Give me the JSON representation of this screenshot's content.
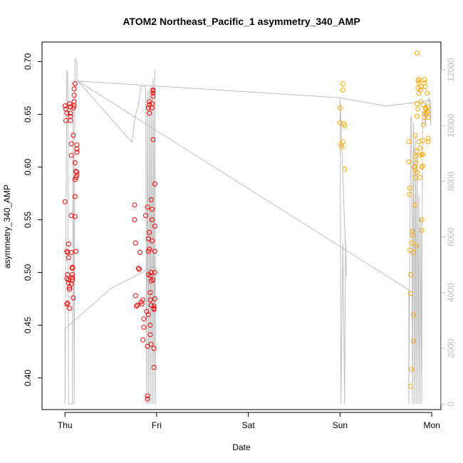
{
  "chart_data": {
    "type": "scatter",
    "title": "ATOM2 Northeast_Pacific_1 asymmetry_340_AMP",
    "xlabel": "Date",
    "ylabel": "asymmetry_340_AMP",
    "x_ticks": [
      "Thu",
      "Fri",
      "Sat",
      "Sun",
      "Mon"
    ],
    "xlim": [
      -0.25,
      4.1
    ],
    "ylim": [
      0.37,
      0.7185
    ],
    "y_ticks": [
      0.4,
      0.45,
      0.5,
      0.55,
      0.6,
      0.65,
      0.7
    ],
    "y_tick_labels": [
      "0.40",
      "0.45",
      "0.50",
      "0.55",
      "0.60",
      "0.65",
      "0.70"
    ],
    "y2_lim": [
      -200,
      13000
    ],
    "y2_ticks": [
      0,
      2000,
      4000,
      6000,
      8000,
      10000,
      12000
    ],
    "y2_tick_labels": [
      "0",
      "2000",
      "4000",
      "6000",
      "8000",
      "10000",
      "12000"
    ],
    "grid": false,
    "colors": {
      "series_1": "#ff0000",
      "series_2": "#ffa500",
      "line": "#bebebe",
      "axis": "#000000",
      "axis_right": "#bebebe"
    },
    "series": [
      {
        "color": "#ff0000",
        "points": [
          [
            0.0,
            0.567
          ],
          [
            0.01,
            0.655
          ],
          [
            0.0,
            0.658
          ],
          [
            0.02,
            0.651
          ],
          [
            0.01,
            0.644
          ],
          [
            0.02,
            0.52
          ],
          [
            0.03,
            0.519
          ],
          [
            0.02,
            0.494
          ],
          [
            0.03,
            0.471
          ],
          [
            0.02,
            0.47
          ],
          [
            0.03,
            0.498
          ],
          [
            0.04,
            0.514
          ],
          [
            0.04,
            0.527
          ],
          [
            0.04,
            0.493
          ],
          [
            0.04,
            0.49
          ],
          [
            0.05,
            0.486
          ],
          [
            0.05,
            0.484
          ],
          [
            0.05,
            0.466
          ],
          [
            0.05,
            0.66
          ],
          [
            0.06,
            0.648
          ],
          [
            0.06,
            0.644
          ],
          [
            0.06,
            0.657
          ],
          [
            0.06,
            0.651
          ],
          [
            0.07,
            0.622
          ],
          [
            0.07,
            0.611
          ],
          [
            0.07,
            0.554
          ],
          [
            0.07,
            0.519
          ],
          [
            0.08,
            0.504
          ],
          [
            0.08,
            0.505
          ],
          [
            0.08,
            0.498
          ],
          [
            0.08,
            0.493
          ],
          [
            0.09,
            0.476
          ],
          [
            0.09,
            0.656
          ],
          [
            0.09,
            0.63
          ],
          [
            0.1,
            0.674
          ],
          [
            0.1,
            0.668
          ],
          [
            0.1,
            0.662
          ],
          [
            0.1,
            0.658
          ],
          [
            0.11,
            0.604
          ],
          [
            0.11,
            0.588
          ],
          [
            0.11,
            0.572
          ],
          [
            0.11,
            0.553
          ],
          [
            0.12,
            0.52
          ],
          [
            0.11,
            0.679
          ],
          [
            0.12,
            0.59
          ],
          [
            0.12,
            0.596
          ],
          [
            0.13,
            0.592
          ],
          [
            0.13,
            0.595
          ],
          [
            0.13,
            0.617
          ],
          [
            0.13,
            0.614
          ],
          [
            0.13,
            0.621
          ],
          [
            0.07,
            0.489
          ],
          [
            0.08,
            0.495
          ],
          [
            0.76,
            0.564
          ],
          [
            0.76,
            0.55
          ],
          [
            0.77,
            0.528
          ],
          [
            0.77,
            0.478
          ],
          [
            0.78,
            0.468
          ],
          [
            0.79,
            0.469
          ],
          [
            0.8,
            0.504
          ],
          [
            0.81,
            0.503
          ],
          [
            0.82,
            0.519
          ],
          [
            0.83,
            0.472
          ],
          [
            0.84,
            0.47
          ],
          [
            0.85,
            0.474
          ],
          [
            0.85,
            0.436
          ],
          [
            0.86,
            0.448
          ],
          [
            0.86,
            0.456
          ],
          [
            0.88,
            0.554
          ],
          [
            0.89,
            0.463
          ],
          [
            0.9,
            0.562
          ],
          [
            0.9,
            0.383
          ],
          [
            0.9,
            0.43
          ],
          [
            0.91,
            0.46
          ],
          [
            0.91,
            0.498
          ],
          [
            0.91,
            0.52
          ],
          [
            0.91,
            0.532
          ],
          [
            0.91,
            0.656
          ],
          [
            0.92,
            0.662
          ],
          [
            0.92,
            0.659
          ],
          [
            0.92,
            0.651
          ],
          [
            0.92,
            0.538
          ],
          [
            0.92,
            0.522
          ],
          [
            0.93,
            0.497
          ],
          [
            0.93,
            0.481
          ],
          [
            0.93,
            0.474
          ],
          [
            0.93,
            0.45
          ],
          [
            0.93,
            0.441
          ],
          [
            0.94,
            0.432
          ],
          [
            0.94,
            0.469
          ],
          [
            0.94,
            0.492
          ],
          [
            0.94,
            0.5
          ],
          [
            0.94,
            0.569
          ],
          [
            0.95,
            0.53
          ],
          [
            0.95,
            0.56
          ],
          [
            0.95,
            0.55
          ],
          [
            0.95,
            0.66
          ],
          [
            0.95,
            0.656
          ],
          [
            0.96,
            0.672
          ],
          [
            0.96,
            0.667
          ],
          [
            0.96,
            0.673
          ],
          [
            0.96,
            0.67
          ],
          [
            0.96,
            0.626
          ],
          [
            0.96,
            0.493
          ],
          [
            0.97,
            0.468
          ],
          [
            0.97,
            0.465
          ],
          [
            0.97,
            0.41
          ],
          [
            0.97,
            0.428
          ],
          [
            0.97,
            0.466
          ],
          [
            0.98,
            0.475
          ],
          [
            0.98,
            0.5
          ],
          [
            0.98,
            0.52
          ],
          [
            0.98,
            0.544
          ],
          [
            0.98,
            0.584
          ],
          [
            0.9,
            0.38
          ]
        ]
      },
      {
        "color": "#ffa500",
        "points": [
          [
            3.0,
            0.656
          ],
          [
            3.0,
            0.642
          ],
          [
            3.01,
            0.621
          ],
          [
            3.02,
            0.619
          ],
          [
            3.03,
            0.673
          ],
          [
            3.03,
            0.679
          ],
          [
            3.03,
            0.624
          ],
          [
            3.04,
            0.641
          ],
          [
            3.05,
            0.639
          ],
          [
            3.05,
            0.598
          ],
          [
            3.75,
            0.624
          ],
          [
            3.75,
            0.605
          ],
          [
            3.76,
            0.58
          ],
          [
            3.76,
            0.574
          ],
          [
            3.76,
            0.521
          ],
          [
            3.77,
            0.498
          ],
          [
            3.77,
            0.48
          ],
          [
            3.77,
            0.392
          ],
          [
            3.78,
            0.408
          ],
          [
            3.78,
            0.528
          ],
          [
            3.79,
            0.539
          ],
          [
            3.79,
            0.535
          ],
          [
            3.8,
            0.46
          ],
          [
            3.8,
            0.519
          ],
          [
            3.8,
            0.435
          ],
          [
            3.81,
            0.6
          ],
          [
            3.82,
            0.59
          ],
          [
            3.82,
            0.597
          ],
          [
            3.82,
            0.61
          ],
          [
            3.82,
            0.564
          ],
          [
            3.82,
            0.63
          ],
          [
            3.83,
            0.615
          ],
          [
            3.83,
            0.604
          ],
          [
            3.84,
            0.708
          ],
          [
            3.84,
            0.66
          ],
          [
            3.84,
            0.648
          ],
          [
            3.85,
            0.655
          ],
          [
            3.85,
            0.675
          ],
          [
            3.85,
            0.682
          ],
          [
            3.86,
            0.683
          ],
          [
            3.86,
            0.68
          ],
          [
            3.86,
            0.67
          ],
          [
            3.86,
            0.624
          ],
          [
            3.87,
            0.618
          ],
          [
            3.87,
            0.611
          ],
          [
            3.87,
            0.59
          ],
          [
            3.88,
            0.662
          ],
          [
            3.88,
            0.673
          ],
          [
            3.88,
            0.676
          ],
          [
            3.89,
            0.612
          ],
          [
            3.89,
            0.6
          ],
          [
            3.89,
            0.55
          ],
          [
            3.89,
            0.54
          ],
          [
            3.9,
            0.612
          ],
          [
            3.9,
            0.601
          ],
          [
            3.9,
            0.625
          ],
          [
            3.91,
            0.64
          ],
          [
            3.91,
            0.659
          ],
          [
            3.92,
            0.651
          ],
          [
            3.92,
            0.647
          ],
          [
            3.92,
            0.68
          ],
          [
            3.92,
            0.683
          ],
          [
            3.93,
            0.676
          ],
          [
            3.93,
            0.656
          ],
          [
            3.94,
            0.655
          ],
          [
            3.94,
            0.65
          ],
          [
            3.95,
            0.67
          ],
          [
            3.95,
            0.652
          ],
          [
            3.96,
            0.657
          ],
          [
            3.96,
            0.647
          ],
          [
            3.96,
            0.627
          ],
          [
            3.96,
            0.624
          ],
          [
            3.83,
            0.525
          ],
          [
            3.84,
            0.595
          ]
        ]
      }
    ],
    "line": [
      [
        0.0,
        2700
      ],
      [
        0.0,
        0
      ],
      [
        0.02,
        12000
      ],
      [
        0.03,
        11800
      ],
      [
        0.04,
        0
      ],
      [
        0.08,
        0
      ],
      [
        0.09,
        11000
      ],
      [
        0.1,
        0
      ],
      [
        0.11,
        12400
      ],
      [
        0.13,
        12300
      ],
      [
        0.13,
        11700
      ],
      [
        0.14,
        11600
      ],
      [
        3.75,
        4100
      ],
      [
        3.75,
        0
      ],
      [
        3.77,
        10300
      ],
      [
        3.78,
        10300
      ],
      [
        3.79,
        0
      ],
      [
        3.8,
        10100
      ],
      [
        3.81,
        0
      ],
      [
        3.82,
        9600
      ],
      [
        3.83,
        0
      ],
      [
        3.84,
        9000
      ],
      [
        3.85,
        0
      ],
      [
        3.86,
        7500
      ],
      [
        3.87,
        0
      ],
      [
        3.88,
        6700
      ],
      [
        3.89,
        0
      ],
      [
        3.9,
        10500
      ],
      [
        3.92,
        10400
      ],
      [
        3.93,
        10000
      ],
      [
        3.94,
        10800
      ],
      [
        3.96,
        10900
      ],
      [
        3.97,
        11000
      ],
      [
        3.98,
        10500
      ],
      [
        3.99,
        10000
      ],
      [
        3.99,
        10900
      ],
      [
        3.5,
        10700
      ],
      [
        3.0,
        11000
      ],
      [
        3.0,
        11000
      ],
      [
        3.01,
        0
      ],
      [
        3.03,
        5800
      ],
      [
        3.04,
        3200
      ],
      [
        3.05,
        0
      ],
      [
        3.06,
        5900
      ],
      [
        3.07,
        4600
      ],
      [
        3.0,
        11000
      ],
      [
        0.14,
        11600
      ],
      [
        0.73,
        9400
      ],
      [
        0.74,
        9600
      ],
      [
        0.76,
        10200
      ],
      [
        0.78,
        10500
      ],
      [
        0.8,
        10700
      ],
      [
        0.83,
        11400
      ],
      [
        0.87,
        11400
      ],
      [
        0.88,
        11400
      ],
      [
        0.89,
        0
      ],
      [
        0.9,
        11200
      ],
      [
        0.91,
        0
      ],
      [
        0.92,
        11300
      ],
      [
        0.93,
        0
      ],
      [
        0.94,
        11400
      ],
      [
        0.95,
        0
      ],
      [
        0.96,
        11700
      ],
      [
        0.97,
        0
      ],
      [
        0.98,
        12000
      ],
      [
        0.99,
        0
      ],
      [
        0.98,
        4950
      ],
      [
        0.5,
        4150
      ],
      [
        0.0,
        2700
      ]
    ]
  }
}
